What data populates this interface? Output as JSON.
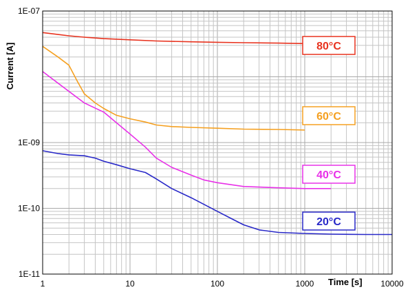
{
  "chart_data": {
    "type": "line",
    "xscale": "log",
    "yscale": "log",
    "xlim": [
      1,
      10000
    ],
    "ylim": [
      1e-11,
      1e-07
    ],
    "xlabel": "Time [s]",
    "ylabel": "Current [A]",
    "grid": true,
    "x_ticks": [
      "1",
      "10",
      "100",
      "1000",
      "10000"
    ],
    "y_ticks": [
      "1E-07",
      "1E-09",
      "1E-10",
      "1E-11"
    ],
    "series": [
      {
        "name": "80°C",
        "color": "#e8321e",
        "x": [
          1,
          1.5,
          2,
          3,
          5,
          10,
          20,
          50,
          100,
          200,
          500,
          1000
        ],
        "y": [
          4.7e-08,
          4.4e-08,
          4.2e-08,
          4e-08,
          3.8e-08,
          3.65e-08,
          3.5e-08,
          3.4e-08,
          3.35e-08,
          3.3e-08,
          3.25e-08,
          3.2e-08
        ]
      },
      {
        "name": "60°C",
        "color": "#f5a020",
        "x": [
          1,
          1.5,
          2,
          2.5,
          3,
          4,
          5,
          7,
          10,
          15,
          20,
          30,
          50,
          100,
          200,
          500,
          1000
        ],
        "y": [
          2.9e-08,
          2e-08,
          1.5e-08,
          8.5e-09,
          5.5e-09,
          4e-09,
          3.3e-09,
          2.6e-09,
          2.3e-09,
          2.05e-09,
          1.85e-09,
          1.75e-09,
          1.7e-09,
          1.65e-09,
          1.6e-09,
          1.58e-09,
          1.55e-09
        ]
      },
      {
        "name": "40°C",
        "color": "#e830e8",
        "x": [
          1,
          1.5,
          2,
          3,
          5,
          7,
          10,
          15,
          20,
          30,
          50,
          70,
          100,
          200,
          500,
          1000,
          2000
        ],
        "y": [
          1.2e-08,
          8e-09,
          6e-09,
          4e-09,
          2.9e-09,
          2e-09,
          1.35e-09,
          8.5e-10,
          5.8e-10,
          4.2e-10,
          3.2e-10,
          2.7e-10,
          2.45e-10,
          2.15e-10,
          2.05e-10,
          2e-10,
          2e-10
        ]
      },
      {
        "name": "20°C",
        "color": "#2828c8",
        "x": [
          1,
          1.5,
          2,
          3,
          4,
          5,
          7,
          10,
          15,
          20,
          30,
          50,
          70,
          100,
          150,
          200,
          300,
          500,
          1000,
          2000,
          5000,
          10000
        ],
        "y": [
          7.5e-10,
          6.8e-10,
          6.5e-10,
          6.3e-10,
          5.8e-10,
          5.2e-10,
          4.6e-10,
          4e-10,
          3.5e-10,
          2.8e-10,
          2e-10,
          1.45e-10,
          1.15e-10,
          9e-11,
          6.8e-11,
          5.6e-11,
          4.7e-11,
          4.3e-11,
          4.15e-11,
          4.05e-11,
          4e-11,
          4e-11
        ]
      }
    ]
  }
}
